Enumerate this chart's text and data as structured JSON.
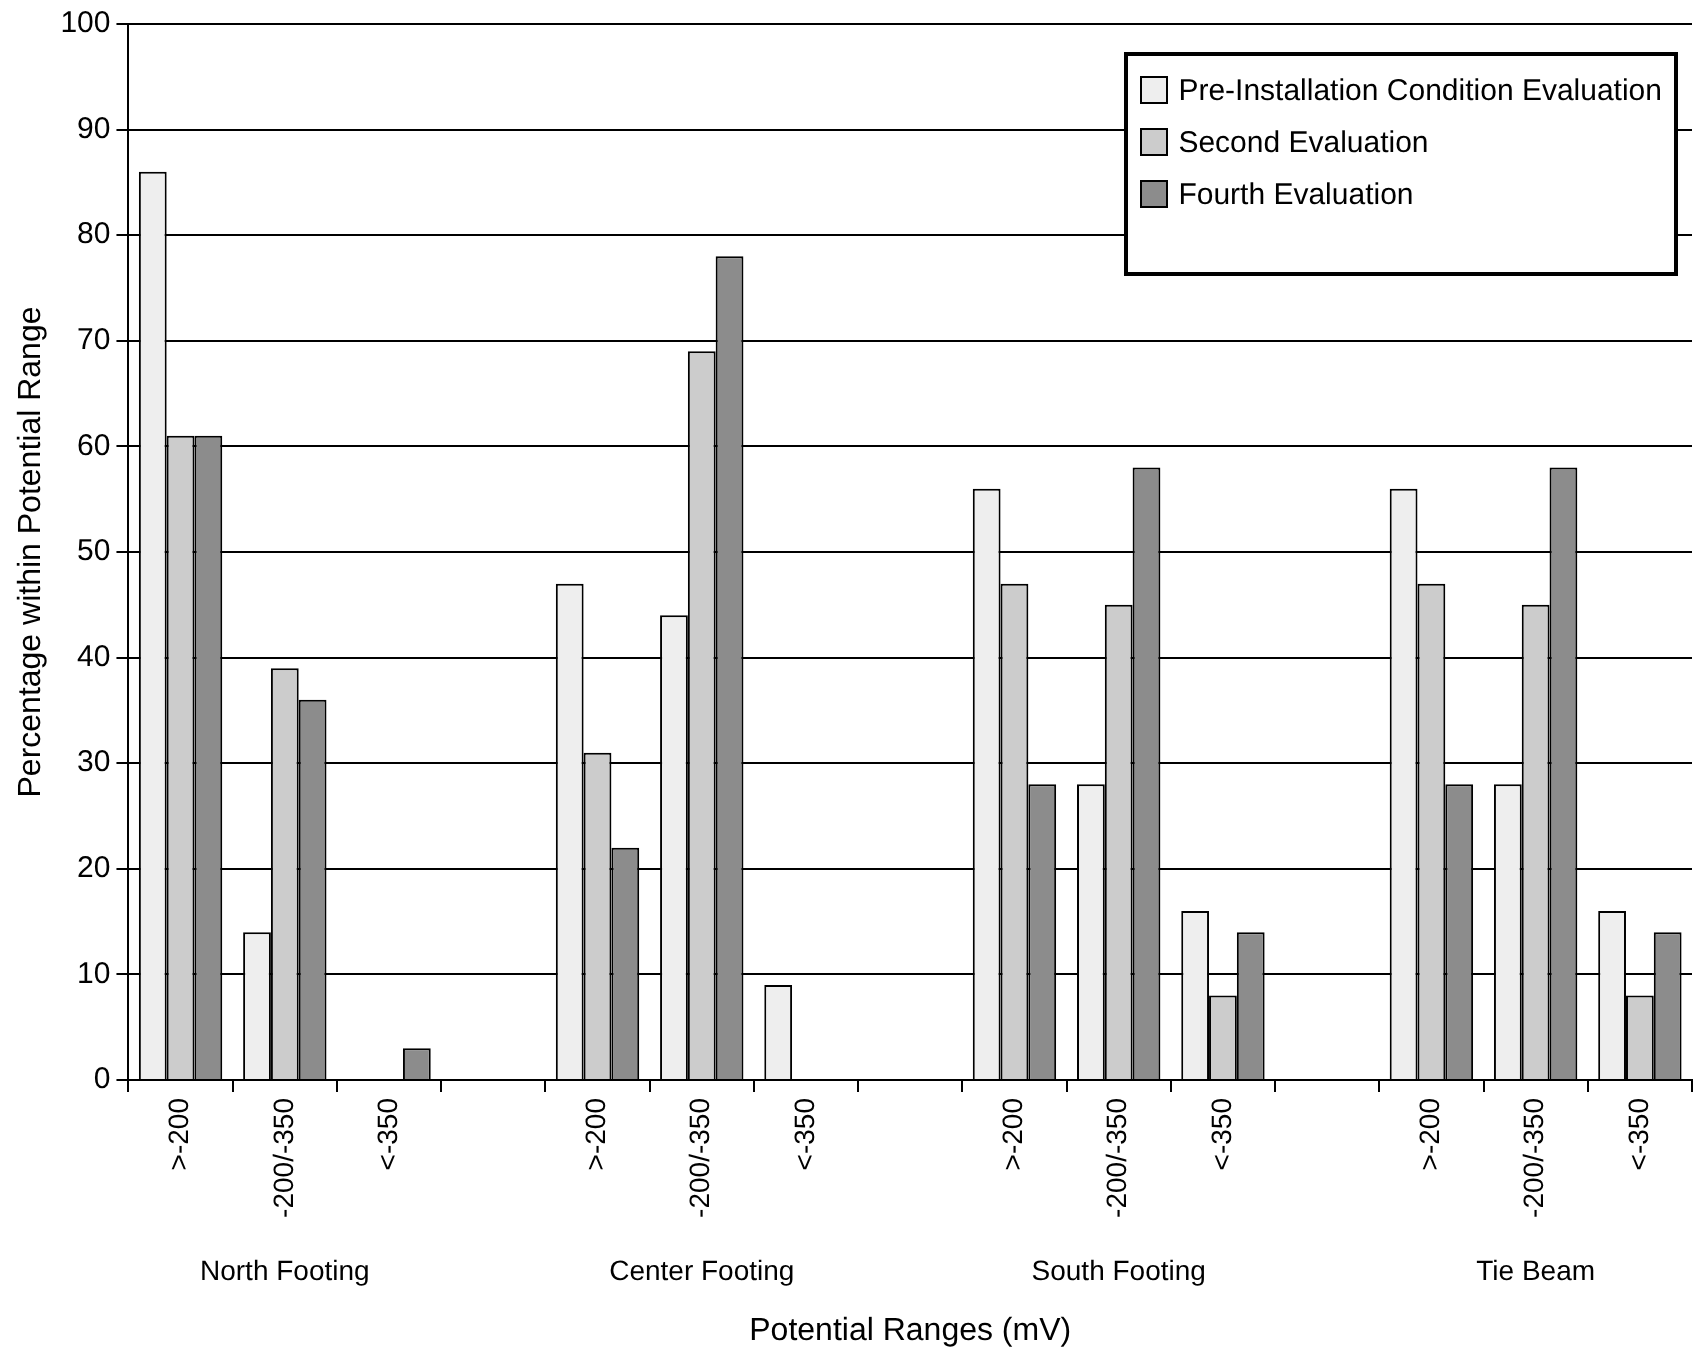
{
  "chart_data": {
    "type": "bar",
    "xlabel": "Potential Ranges (mV)",
    "ylabel": "Percentage within Potential Range",
    "categories": [
      ">-200",
      "-200/-350",
      "<-350",
      null,
      ">-200",
      "-200/-350",
      "<-350",
      null,
      ">-200",
      "-200/-350",
      "<-350",
      null,
      ">-200",
      "-200/-350",
      "<-350"
    ],
    "series": [
      {
        "name": "Pre-Installation Condition Evaluation",
        "color": "#eeeeee",
        "values": [
          86,
          14,
          0,
          null,
          47,
          44,
          9,
          null,
          56,
          28,
          16,
          null,
          56,
          28,
          16
        ]
      },
      {
        "name": "Second Evaluation",
        "color": "#cccccc",
        "values": [
          61,
          39,
          0,
          null,
          31,
          69,
          0,
          null,
          47,
          45,
          8,
          null,
          47,
          45,
          8
        ]
      },
      {
        "name": "Fourth Evaluation",
        "color": "#8c8c8c",
        "values": [
          61,
          36,
          3,
          null,
          22,
          78,
          0,
          null,
          28,
          58,
          14,
          null,
          28,
          58,
          14
        ]
      }
    ],
    "annotations": [
      "North Footing",
      "Center Footing",
      "South Footing",
      "Tie Beam"
    ],
    "ylim": [
      0,
      100
    ],
    "yticks": [
      0,
      10,
      20,
      30,
      40,
      50,
      60,
      70,
      80,
      90,
      100
    ],
    "grid": "y",
    "legend": "top right"
  }
}
